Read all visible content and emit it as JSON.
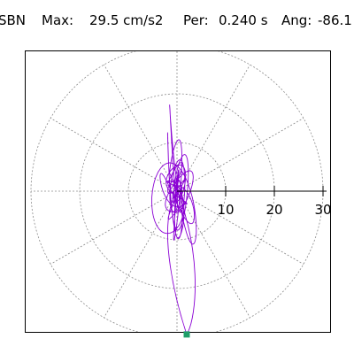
{
  "header": {
    "station": "SBN",
    "max_label": "Max:",
    "max_value": "29.5 cm/s2",
    "per_label": "Per:",
    "per_value": "0.240 s",
    "ang_label": "Ang:",
    "ang_value": "-86.1"
  },
  "colors": {
    "trace": "#8a00d4",
    "grid": "#8c8c8c",
    "axis": "#000000",
    "frame": "#000000",
    "marker": "#1f9e6a"
  },
  "chart_data": {
    "type": "polar-orbit",
    "radial_ticks": [
      10,
      20,
      30
    ],
    "radial_tick_labels": [
      "10",
      "20",
      "30"
    ],
    "r_max": 30,
    "grid": true,
    "angular_grid_step_deg": 30,
    "peak_amplitude": 29.5,
    "peak_angle_deg": -86.1
  }
}
